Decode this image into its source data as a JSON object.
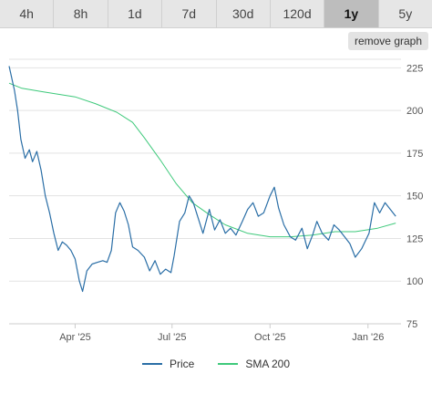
{
  "timeframes": [
    {
      "label": "4h",
      "active": false
    },
    {
      "label": "8h",
      "active": false
    },
    {
      "label": "1d",
      "active": false
    },
    {
      "label": "7d",
      "active": false
    },
    {
      "label": "30d",
      "active": false
    },
    {
      "label": "120d",
      "active": false
    },
    {
      "label": "1y",
      "active": true
    },
    {
      "label": "5y",
      "active": false
    }
  ],
  "remove_graph_label": "remove graph",
  "colors": {
    "price": "#2a6ea6",
    "sma": "#3ec97b",
    "grid": "#e3e3e3",
    "axis": "#cccccc"
  },
  "chart_data": {
    "type": "line",
    "x_start": "2025-01-29",
    "x_end": "2026-02-01",
    "ylim": [
      75,
      230
    ],
    "grid": true,
    "legend_position": "bottom-center",
    "y_ticks": [
      75,
      100,
      125,
      150,
      175,
      200,
      225
    ],
    "x_ticks": [
      {
        "label": "Apr '25",
        "date": "2025-04-01"
      },
      {
        "label": "Jul '25",
        "date": "2025-07-01"
      },
      {
        "label": "Oct '25",
        "date": "2025-10-01"
      },
      {
        "label": "Jan '26",
        "date": "2026-01-01"
      }
    ],
    "series": [
      {
        "name": "Price",
        "points": [
          [
            "2025-01-29",
            226
          ],
          [
            "2025-02-03",
            212
          ],
          [
            "2025-02-06",
            200
          ],
          [
            "2025-02-09",
            183
          ],
          [
            "2025-02-13",
            172
          ],
          [
            "2025-02-17",
            177
          ],
          [
            "2025-02-20",
            170
          ],
          [
            "2025-02-24",
            176
          ],
          [
            "2025-02-28",
            165
          ],
          [
            "2025-03-04",
            150
          ],
          [
            "2025-03-08",
            140
          ],
          [
            "2025-03-12",
            128
          ],
          [
            "2025-03-16",
            118
          ],
          [
            "2025-03-20",
            123
          ],
          [
            "2025-03-24",
            121
          ],
          [
            "2025-03-28",
            118
          ],
          [
            "2025-04-01",
            113
          ],
          [
            "2025-04-05",
            100
          ],
          [
            "2025-04-08",
            94
          ],
          [
            "2025-04-12",
            106
          ],
          [
            "2025-04-17",
            110
          ],
          [
            "2025-04-22",
            111
          ],
          [
            "2025-04-27",
            112
          ],
          [
            "2025-05-01",
            111
          ],
          [
            "2025-05-05",
            118
          ],
          [
            "2025-05-09",
            140
          ],
          [
            "2025-05-13",
            146
          ],
          [
            "2025-05-17",
            141
          ],
          [
            "2025-05-21",
            133
          ],
          [
            "2025-05-25",
            120
          ],
          [
            "2025-05-30",
            118
          ],
          [
            "2025-06-05",
            114
          ],
          [
            "2025-06-10",
            106
          ],
          [
            "2025-06-15",
            112
          ],
          [
            "2025-06-20",
            104
          ],
          [
            "2025-06-25",
            107
          ],
          [
            "2025-06-30",
            105
          ],
          [
            "2025-07-03",
            115
          ],
          [
            "2025-07-08",
            135
          ],
          [
            "2025-07-13",
            140
          ],
          [
            "2025-07-17",
            150
          ],
          [
            "2025-07-21",
            146
          ],
          [
            "2025-07-25",
            138
          ],
          [
            "2025-07-30",
            128
          ],
          [
            "2025-08-05",
            142
          ],
          [
            "2025-08-10",
            130
          ],
          [
            "2025-08-15",
            136
          ],
          [
            "2025-08-20",
            128
          ],
          [
            "2025-08-25",
            131
          ],
          [
            "2025-08-30",
            127
          ],
          [
            "2025-09-05",
            135
          ],
          [
            "2025-09-10",
            142
          ],
          [
            "2025-09-15",
            146
          ],
          [
            "2025-09-20",
            138
          ],
          [
            "2025-09-25",
            140
          ],
          [
            "2025-10-01",
            150
          ],
          [
            "2025-10-05",
            155
          ],
          [
            "2025-10-09",
            143
          ],
          [
            "2025-10-14",
            133
          ],
          [
            "2025-10-20",
            126
          ],
          [
            "2025-10-25",
            124
          ],
          [
            "2025-10-31",
            131
          ],
          [
            "2025-11-05",
            119
          ],
          [
            "2025-11-10",
            127
          ],
          [
            "2025-11-14",
            135
          ],
          [
            "2025-11-19",
            128
          ],
          [
            "2025-11-25",
            124
          ],
          [
            "2025-11-30",
            133
          ],
          [
            "2025-12-05",
            130
          ],
          [
            "2025-12-10",
            126
          ],
          [
            "2025-12-15",
            122
          ],
          [
            "2025-12-20",
            114
          ],
          [
            "2025-12-26",
            119
          ],
          [
            "2026-01-02",
            128
          ],
          [
            "2026-01-07",
            146
          ],
          [
            "2026-01-12",
            140
          ],
          [
            "2026-01-17",
            146
          ],
          [
            "2026-01-22",
            142
          ],
          [
            "2026-01-27",
            138
          ]
        ]
      },
      {
        "name": "SMA 200",
        "points": [
          [
            "2025-01-29",
            216
          ],
          [
            "2025-02-10",
            213
          ],
          [
            "2025-03-01",
            211
          ],
          [
            "2025-04-01",
            208
          ],
          [
            "2025-04-20",
            204
          ],
          [
            "2025-05-10",
            199
          ],
          [
            "2025-05-25",
            193
          ],
          [
            "2025-06-05",
            184
          ],
          [
            "2025-06-20",
            171
          ],
          [
            "2025-07-05",
            157
          ],
          [
            "2025-07-20",
            146
          ],
          [
            "2025-08-05",
            139
          ],
          [
            "2025-08-20",
            133
          ],
          [
            "2025-09-10",
            128
          ],
          [
            "2025-10-01",
            126
          ],
          [
            "2025-10-20",
            126
          ],
          [
            "2025-11-10",
            127
          ],
          [
            "2025-12-01",
            129
          ],
          [
            "2025-12-20",
            129
          ],
          [
            "2026-01-10",
            131
          ],
          [
            "2026-01-27",
            134
          ]
        ]
      }
    ]
  }
}
